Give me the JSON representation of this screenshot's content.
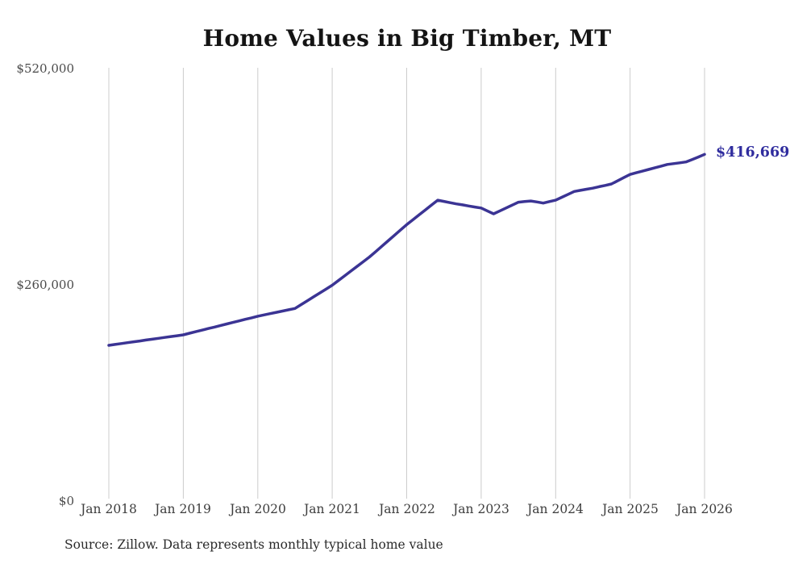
{
  "chart": {
    "source": "Source: Zillow. Data represents monthly typical home value"
  },
  "chart_data": {
    "type": "line",
    "title": "Home Values in Big Timber, MT",
    "series_name": "Monthly typical home value",
    "x_start": "Jan 2018",
    "x_end": "Jan 2026",
    "x_interval": "monthly",
    "x_tick_labels": [
      "Jan 2018",
      "Jan 2019",
      "Jan 2020",
      "Jan 2021",
      "Jan 2022",
      "Jan 2023",
      "Jan 2024",
      "Jan 2025",
      "Jan 2026"
    ],
    "y_ticks": [
      {
        "label": "$520,000",
        "value": 520000
      },
      {
        "label": "$260,000",
        "value": 260000
      },
      {
        "label": "$0",
        "value": 0
      }
    ],
    "ylim": [
      0,
      520000
    ],
    "grid": "vertical-only",
    "legend": "none",
    "line_color": "#3b3494",
    "gridline_color": "#cccccc",
    "last_value_label": "$416,669",
    "last_value": 416669,
    "values": [
      186600,
      187700,
      188800,
      189800,
      190900,
      191900,
      193000,
      194000,
      195100,
      196100,
      197200,
      198200,
      199300,
      201200,
      203000,
      204900,
      206800,
      208600,
      210500,
      212400,
      214200,
      216100,
      218000,
      219800,
      221700,
      223300,
      224800,
      226400,
      227900,
      229500,
      231000,
      235700,
      240300,
      245000,
      249700,
      254300,
      259000,
      264700,
      270300,
      276000,
      281700,
      287300,
      293000,
      299500,
      306000,
      312500,
      319000,
      325500,
      332000,
      337900,
      343800,
      349700,
      355600,
      361500,
      360000,
      358500,
      357000,
      355800,
      354500,
      353200,
      352000,
      348500,
      345000,
      348500,
      352000,
      355500,
      359000,
      359800,
      360500,
      359300,
      358000,
      359800,
      361500,
      365000,
      368500,
      372000,
      373300,
      374700,
      376000,
      377700,
      379300,
      381000,
      384800,
      388700,
      392500,
      394500,
      396500,
      398500,
      400500,
      402500,
      404500,
      405500,
      406500,
      407500,
      410500,
      413500,
      416669
    ]
  }
}
